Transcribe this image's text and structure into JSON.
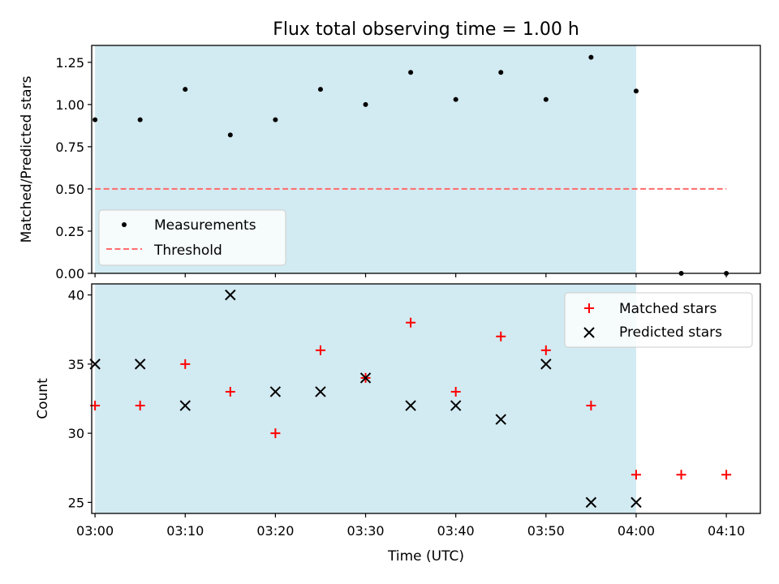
{
  "chart_data": [
    {
      "type": "scatter",
      "title": "Flux total observing time = 1.00 h",
      "xlabel": "",
      "ylabel": "Matched/Predicted stars",
      "ylim": [
        0,
        1.35
      ],
      "yticks": [
        "0.00",
        "0.25",
        "0.50",
        "0.75",
        "1.00",
        "1.25"
      ],
      "shaded_span": [
        "03:00",
        "04:00"
      ],
      "series": [
        {
          "name": "Measurements",
          "marker": "dot",
          "color": "#000000",
          "x": [
            "03:00",
            "03:05",
            "03:10",
            "03:15",
            "03:20",
            "03:25",
            "03:30",
            "03:35",
            "03:40",
            "03:45",
            "03:50",
            "03:55",
            "04:00",
            "04:05",
            "04:10"
          ],
          "y": [
            0.91,
            0.91,
            1.09,
            0.82,
            0.91,
            1.09,
            1.0,
            1.19,
            1.03,
            1.19,
            1.03,
            1.28,
            1.08,
            0.0,
            0.0
          ]
        },
        {
          "name": "Threshold",
          "marker": "dashed-line",
          "color": "#ff6b6b",
          "x": [
            "03:00",
            "04:10"
          ],
          "y": [
            0.5,
            0.5
          ]
        }
      ],
      "legend_position": "lower-left"
    },
    {
      "type": "scatter",
      "xlabel": "Time (UTC)",
      "ylabel": "Count",
      "ylim": [
        24.2,
        40.8
      ],
      "yticks": [
        "25",
        "30",
        "35",
        "40"
      ],
      "xticks": [
        "03:00",
        "03:10",
        "03:20",
        "03:30",
        "03:40",
        "03:50",
        "04:00",
        "04:10"
      ],
      "shaded_span": [
        "03:00",
        "04:00"
      ],
      "series": [
        {
          "name": "Matched stars",
          "marker": "plus",
          "color": "#ff0000",
          "x": [
            "03:00",
            "03:05",
            "03:10",
            "03:15",
            "03:20",
            "03:25",
            "03:30",
            "03:35",
            "03:40",
            "03:45",
            "03:50",
            "03:55",
            "04:00",
            "04:05",
            "04:10"
          ],
          "y": [
            32,
            32,
            35,
            33,
            30,
            36,
            34,
            38,
            33,
            37,
            36,
            32,
            27,
            27,
            27
          ]
        },
        {
          "name": "Predicted stars",
          "marker": "x",
          "color": "#000000",
          "x": [
            "03:00",
            "03:05",
            "03:10",
            "03:15",
            "03:20",
            "03:25",
            "03:30",
            "03:35",
            "03:40",
            "03:45",
            "03:50",
            "03:55",
            "04:00"
          ],
          "y": [
            35,
            35,
            32,
            40,
            33,
            33,
            34,
            32,
            32,
            31,
            35,
            25,
            25
          ]
        }
      ],
      "legend_position": "upper-right"
    }
  ],
  "colors": {
    "shade": "#add8e6",
    "axes": "#000000"
  }
}
